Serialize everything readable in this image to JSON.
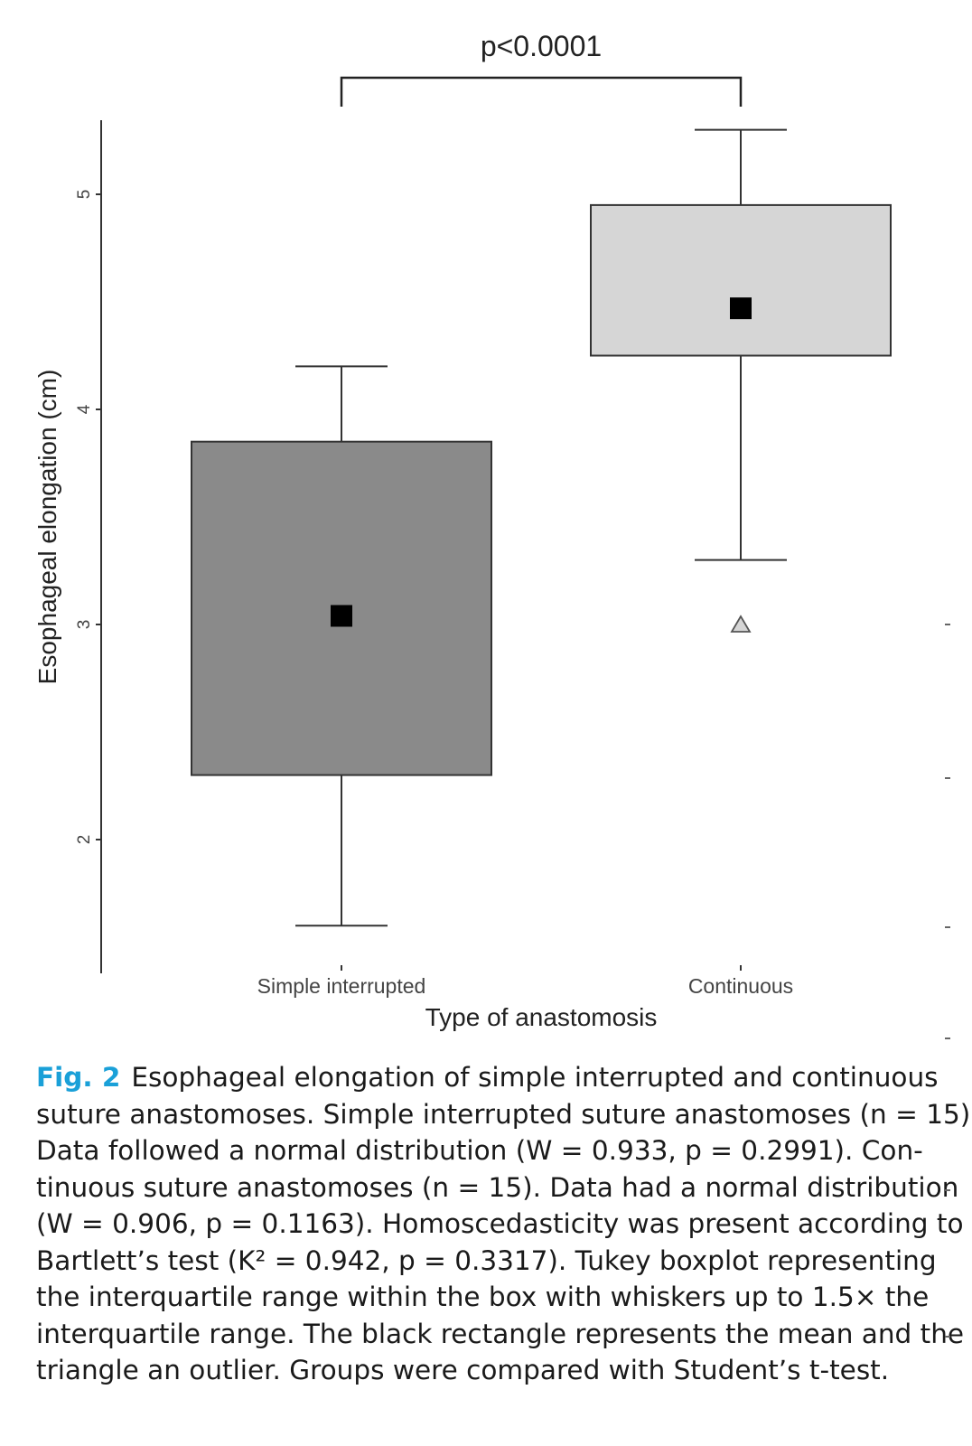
{
  "chart_data": {
    "type": "boxplot",
    "xlabel": "Type of anastomosis",
    "ylabel": "Esophageal elongation (cm)",
    "yticks": [
      2,
      3,
      4,
      5
    ],
    "ylim": [
      1.4,
      5.5
    ],
    "grid": false,
    "legend": "none",
    "categories": [
      "Simple interrupted",
      "Continuous"
    ],
    "boxes": [
      {
        "category": "Simple interrupted",
        "whisker_low": 1.6,
        "q1": 2.3,
        "q3": 3.85,
        "whisker_high": 4.2,
        "mean": 3.04,
        "outliers": [],
        "fill": "#8a8a8a"
      },
      {
        "category": "Continuous",
        "whisker_low": 3.3,
        "q1": 4.25,
        "q3": 4.95,
        "whisker_high": 5.3,
        "mean": 4.47,
        "outliers": [
          3.0
        ],
        "fill": "#d6d6d6"
      }
    ],
    "annotation": {
      "text": "p<0.0001",
      "between": [
        "Simple interrupted",
        "Continuous"
      ]
    }
  },
  "caption": {
    "label": "Fig. 2",
    "lines": [
      "Esophageal elongation of simple interrupted and continuous",
      "suture anastomoses. Simple interrupted suture anastomoses (n = 15).",
      "Data followed a normal distribution (W = 0.933, p = 0.2991). Con-",
      "tinuous suture anastomoses (n = 15). Data had a normal distribution",
      "(W = 0.906, p = 0.1163). Homoscedasticity was present according to",
      "Bartlett’s test (K² = 0.942, p = 0.3317). Tukey boxplot representing",
      "the interquartile range within the box with whiskers up to 1.5× the",
      "interquartile range. The black rectangle represents the mean and the",
      "triangle an outlier. Groups were compared with Student’s t-test."
    ]
  }
}
